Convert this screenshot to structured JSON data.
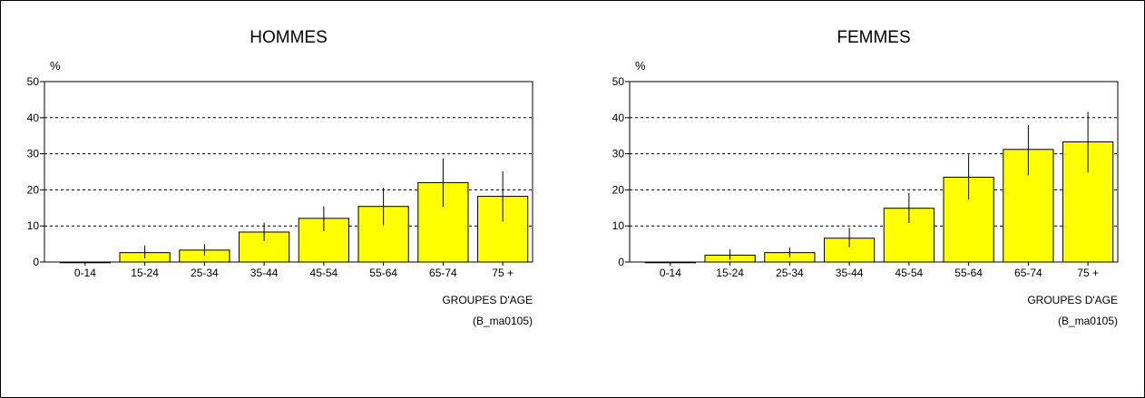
{
  "chart_data": [
    {
      "type": "bar",
      "title": "HOMMES",
      "ylabel": "%",
      "xlabel": "GROUPES D'AGE",
      "source_note": "(B_ma0105)",
      "ylim": [
        0,
        50
      ],
      "yticks": [
        0,
        10,
        20,
        30,
        40,
        50
      ],
      "grid": true,
      "categories": [
        "0-14",
        "15-24",
        "25-34",
        "35-44",
        "45-54",
        "55-64",
        "65-74",
        "75 +"
      ],
      "values": [
        0,
        2.6,
        3.3,
        8.3,
        12.1,
        15.4,
        22.0,
        18.2
      ],
      "error_low": [
        0,
        1.0,
        1.8,
        5.8,
        8.6,
        10.2,
        15.3,
        11.2
      ],
      "error_high": [
        0,
        4.6,
        4.9,
        10.9,
        15.4,
        20.6,
        28.7,
        25.1
      ],
      "bar_color": "#ffff00"
    },
    {
      "type": "bar",
      "title": "FEMMES",
      "ylabel": "%",
      "xlabel": "GROUPES D'AGE",
      "source_note": "(B_ma0105)",
      "ylim": [
        0,
        50
      ],
      "yticks": [
        0,
        10,
        20,
        30,
        40,
        50
      ],
      "grid": true,
      "categories": [
        "0-14",
        "15-24",
        "25-34",
        "35-44",
        "45-54",
        "55-64",
        "65-74",
        "75 +"
      ],
      "values": [
        0,
        1.9,
        2.6,
        6.6,
        14.9,
        23.5,
        31.2,
        33.3
      ],
      "error_low": [
        0,
        0.6,
        1.3,
        4.1,
        10.8,
        17.3,
        24.0,
        24.8
      ],
      "error_high": [
        0,
        3.5,
        4.0,
        9.5,
        19.1,
        29.8,
        37.9,
        41.6
      ],
      "bar_color": "#ffff00"
    }
  ]
}
